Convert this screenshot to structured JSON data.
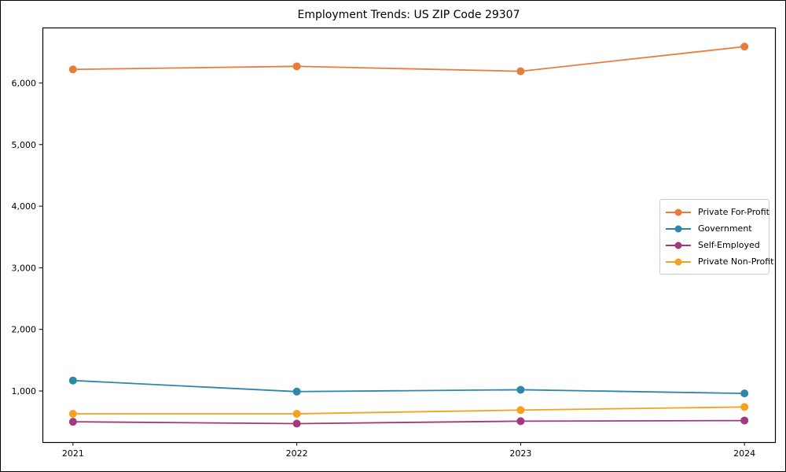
{
  "figure": {
    "title": "Employment Trends: US ZIP Code 29307"
  },
  "chart_data": {
    "type": "line",
    "title": "Employment Trends: US ZIP Code 29307",
    "xlabel": "",
    "ylabel": "",
    "x": [
      2021,
      2022,
      2023,
      2024
    ],
    "x_tick_labels": [
      "2021",
      "2022",
      "2023",
      "2024"
    ],
    "series": [
      {
        "name": "Private For-Profit",
        "color": "#e87d3b",
        "values": [
          6220,
          6270,
          6190,
          6590
        ]
      },
      {
        "name": "Government",
        "color": "#2e86ab",
        "values": [
          1170,
          990,
          1020,
          960
        ]
      },
      {
        "name": "Self-Employed",
        "color": "#a2397c",
        "values": [
          500,
          470,
          510,
          520
        ]
      },
      {
        "name": "Private Non-Profit",
        "color": "#f4a11d",
        "values": [
          630,
          630,
          690,
          740
        ]
      }
    ],
    "yticks": [
      1000,
      2000,
      3000,
      4000,
      5000,
      6000
    ],
    "ytick_labels": [
      "1,000",
      "2,000",
      "3,000",
      "4,000",
      "5,000",
      "6,000"
    ],
    "ylim": [
      170,
      6900
    ],
    "xlim": [
      2020.8636,
      2024.1364
    ],
    "grid": false,
    "legend_position": "center-right",
    "marker": "o",
    "marker_radius": 5,
    "line_width": 1.8,
    "axes_color": "#000000",
    "background_color": "#ffffff"
  }
}
